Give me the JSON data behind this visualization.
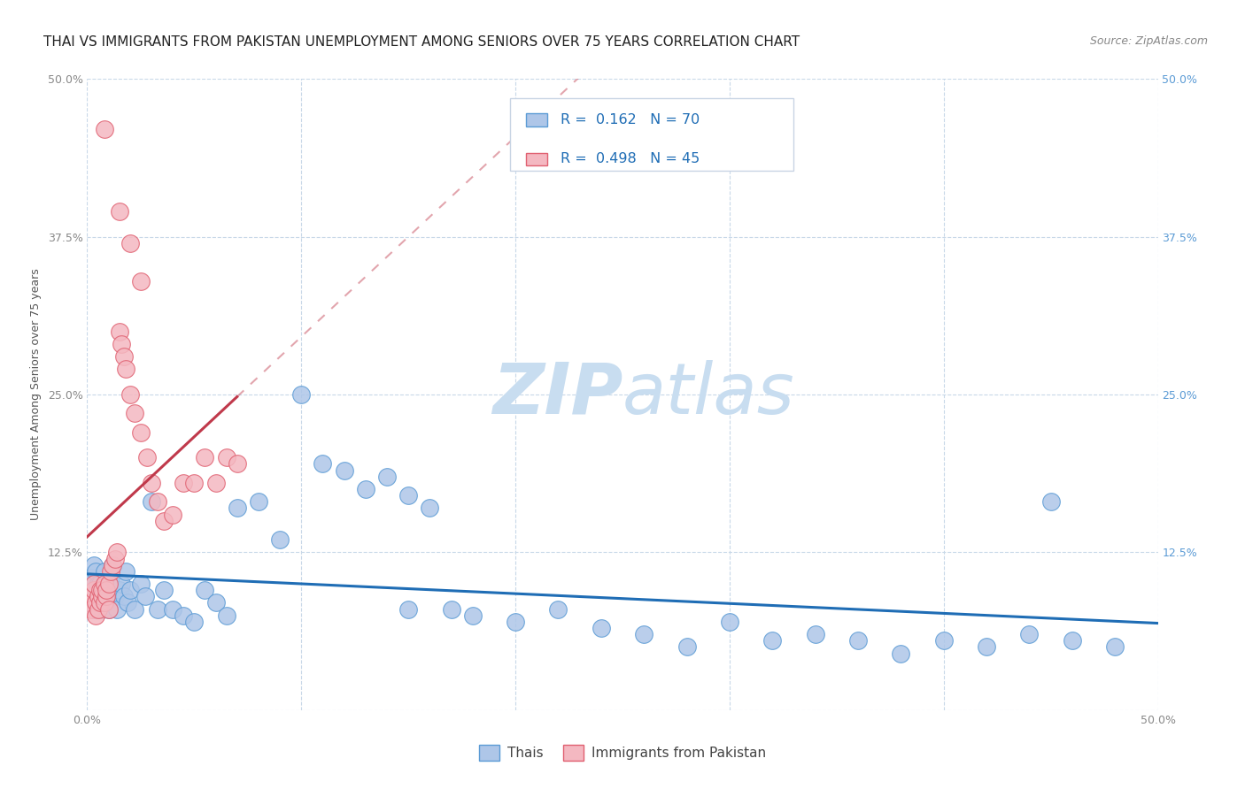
{
  "title": "THAI VS IMMIGRANTS FROM PAKISTAN UNEMPLOYMENT AMONG SENIORS OVER 75 YEARS CORRELATION CHART",
  "source": "Source: ZipAtlas.com",
  "ylabel": "Unemployment Among Seniors over 75 years",
  "xlim": [
    0,
    0.5
  ],
  "ylim": [
    0,
    0.5
  ],
  "thai_color": "#aec6e8",
  "thai_edge_color": "#5b9bd5",
  "pakistan_color": "#f4b8c1",
  "pakistan_edge_color": "#e06070",
  "trend_thai_color": "#1f6db5",
  "trend_pakistan_color": "#c0394b",
  "watermark_zip_color": "#c8ddf0",
  "watermark_atlas_color": "#c8ddf0",
  "legend_text_color": "#1f6db5",
  "background_color": "#ffffff",
  "grid_color": "#c8d8e8",
  "title_fontsize": 11,
  "axis_label_fontsize": 9,
  "tick_fontsize": 9,
  "thai_x": [
    0.001,
    0.002,
    0.002,
    0.003,
    0.003,
    0.004,
    0.004,
    0.005,
    0.005,
    0.006,
    0.006,
    0.007,
    0.007,
    0.008,
    0.008,
    0.009,
    0.009,
    0.01,
    0.01,
    0.011,
    0.012,
    0.013,
    0.014,
    0.015,
    0.016,
    0.017,
    0.018,
    0.019,
    0.02,
    0.022,
    0.025,
    0.027,
    0.03,
    0.033,
    0.036,
    0.04,
    0.045,
    0.05,
    0.055,
    0.06,
    0.065,
    0.07,
    0.08,
    0.09,
    0.1,
    0.11,
    0.12,
    0.13,
    0.14,
    0.15,
    0.16,
    0.17,
    0.18,
    0.2,
    0.22,
    0.24,
    0.26,
    0.28,
    0.3,
    0.32,
    0.34,
    0.36,
    0.38,
    0.4,
    0.42,
    0.44,
    0.46,
    0.48,
    0.15,
    0.45
  ],
  "thai_y": [
    0.1,
    0.09,
    0.105,
    0.115,
    0.095,
    0.08,
    0.11,
    0.1,
    0.085,
    0.095,
    0.1,
    0.09,
    0.08,
    0.095,
    0.11,
    0.1,
    0.085,
    0.095,
    0.08,
    0.105,
    0.115,
    0.09,
    0.08,
    0.095,
    0.1,
    0.09,
    0.11,
    0.085,
    0.095,
    0.08,
    0.1,
    0.09,
    0.165,
    0.08,
    0.095,
    0.08,
    0.075,
    0.07,
    0.095,
    0.085,
    0.075,
    0.16,
    0.165,
    0.135,
    0.25,
    0.195,
    0.19,
    0.175,
    0.185,
    0.17,
    0.16,
    0.08,
    0.075,
    0.07,
    0.08,
    0.065,
    0.06,
    0.05,
    0.07,
    0.055,
    0.06,
    0.055,
    0.045,
    0.055,
    0.05,
    0.06,
    0.055,
    0.05,
    0.08,
    0.165
  ],
  "pak_x": [
    0.001,
    0.002,
    0.002,
    0.003,
    0.003,
    0.004,
    0.004,
    0.005,
    0.005,
    0.006,
    0.006,
    0.007,
    0.007,
    0.008,
    0.008,
    0.009,
    0.009,
    0.01,
    0.01,
    0.011,
    0.012,
    0.013,
    0.014,
    0.015,
    0.016,
    0.017,
    0.018,
    0.02,
    0.022,
    0.025,
    0.028,
    0.03,
    0.033,
    0.036,
    0.04,
    0.045,
    0.05,
    0.055,
    0.06,
    0.065,
    0.07,
    0.008,
    0.015,
    0.02,
    0.025
  ],
  "pak_y": [
    0.085,
    0.09,
    0.08,
    0.095,
    0.1,
    0.085,
    0.075,
    0.09,
    0.08,
    0.095,
    0.085,
    0.09,
    0.095,
    0.1,
    0.085,
    0.09,
    0.095,
    0.08,
    0.1,
    0.11,
    0.115,
    0.12,
    0.125,
    0.3,
    0.29,
    0.28,
    0.27,
    0.25,
    0.235,
    0.22,
    0.2,
    0.18,
    0.165,
    0.15,
    0.155,
    0.18,
    0.18,
    0.2,
    0.18,
    0.2,
    0.195,
    0.46,
    0.395,
    0.37,
    0.34
  ]
}
